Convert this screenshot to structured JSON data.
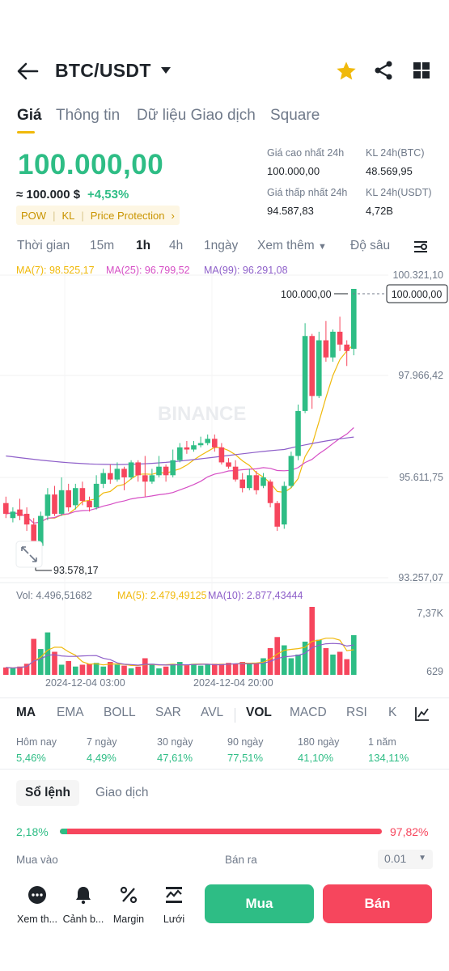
{
  "header": {
    "pair": "BTC/USDT"
  },
  "tabs": [
    {
      "label": "Giá",
      "active": true
    },
    {
      "label": "Thông tin"
    },
    {
      "label": "Dữ liệu Giao dịch"
    },
    {
      "label": "Square"
    }
  ],
  "ticker": {
    "price": "100.000,00",
    "approx": "≈ 100.000 $",
    "change": "+4,53%",
    "tags": [
      "POW",
      "KL",
      "Price Protection"
    ],
    "stats": [
      {
        "label": "Giá cao nhất 24h",
        "value": "100.000,00"
      },
      {
        "label": "KL 24h(BTC)",
        "value": "48.569,95"
      },
      {
        "label": "Giá thấp nhất 24h",
        "value": "94.587,83"
      },
      {
        "label": "KL 24h(USDT)",
        "value": "4,72B"
      }
    ]
  },
  "intervals": [
    {
      "label": "Thời gian"
    },
    {
      "label": "15m"
    },
    {
      "label": "1h",
      "active": true
    },
    {
      "label": "4h"
    },
    {
      "label": "1ngày"
    },
    {
      "label": "Xem thêm"
    },
    {
      "label": "Độ sâu"
    }
  ],
  "chart": {
    "ma_legend": [
      {
        "label": "MA(7): 98.525,17",
        "color": "#f0b90b"
      },
      {
        "label": "MA(25): 96.799,52",
        "color": "#d64fc5"
      },
      {
        "label": "MA(99): 96.291,08",
        "color": "#8e5fc9"
      }
    ],
    "watermark": "BINANCE",
    "price_axis": [
      "100.321,10",
      "97.966,42",
      "95.611,75",
      "93.257,07"
    ],
    "last_price_tag": "100.000,00",
    "high_marker": "100.000,00",
    "low_marker": "93.578,17",
    "vol_legend": [
      {
        "label": "Vol: 4.496,51682",
        "color": "#707a8a"
      },
      {
        "label": "MA(5): 2.479,49125",
        "color": "#f0b90b"
      },
      {
        "label": "MA(10): 2.877,43444",
        "color": "#8e5fc9"
      }
    ],
    "vol_axis": [
      "7,37K",
      "629"
    ],
    "time_axis": [
      "2024-12-04 03:00",
      "2024-12-04 20:00"
    ]
  },
  "indicators": [
    {
      "label": "MA",
      "active": true
    },
    {
      "label": "EMA"
    },
    {
      "label": "BOLL"
    },
    {
      "label": "SAR"
    },
    {
      "label": "AVL"
    },
    {
      "label": "VOL",
      "active": true
    },
    {
      "label": "MACD"
    },
    {
      "label": "RSI"
    },
    {
      "label": "K"
    }
  ],
  "performance": [
    {
      "label": "Hôm nay",
      "value": "5,46%"
    },
    {
      "label": "7 ngày",
      "value": "4,49%"
    },
    {
      "label": "30 ngày",
      "value": "47,61%"
    },
    {
      "label": "90 ngày",
      "value": "77,51%"
    },
    {
      "label": "180 ngày",
      "value": "41,10%"
    },
    {
      "label": "1 năm",
      "value": "134,11%"
    }
  ],
  "orderbook": {
    "tab_orderbook": "Sổ lệnh",
    "tab_trades": "Giao dịch",
    "buy_pct": "2,18%",
    "sell_pct": "97,82%",
    "buy_ratio": 0.0218,
    "buy_label": "Mua vào",
    "sell_label": "Bán ra",
    "depth": "0.01"
  },
  "bottom": {
    "items": [
      {
        "label": "Xem th...",
        "icon": "more-icon"
      },
      {
        "label": "Cảnh b...",
        "icon": "bell-icon"
      },
      {
        "label": "Margin",
        "icon": "percent-icon"
      },
      {
        "label": "Lưới",
        "icon": "grid-bot-icon"
      }
    ],
    "buy": "Mua",
    "sell": "Bán"
  }
}
